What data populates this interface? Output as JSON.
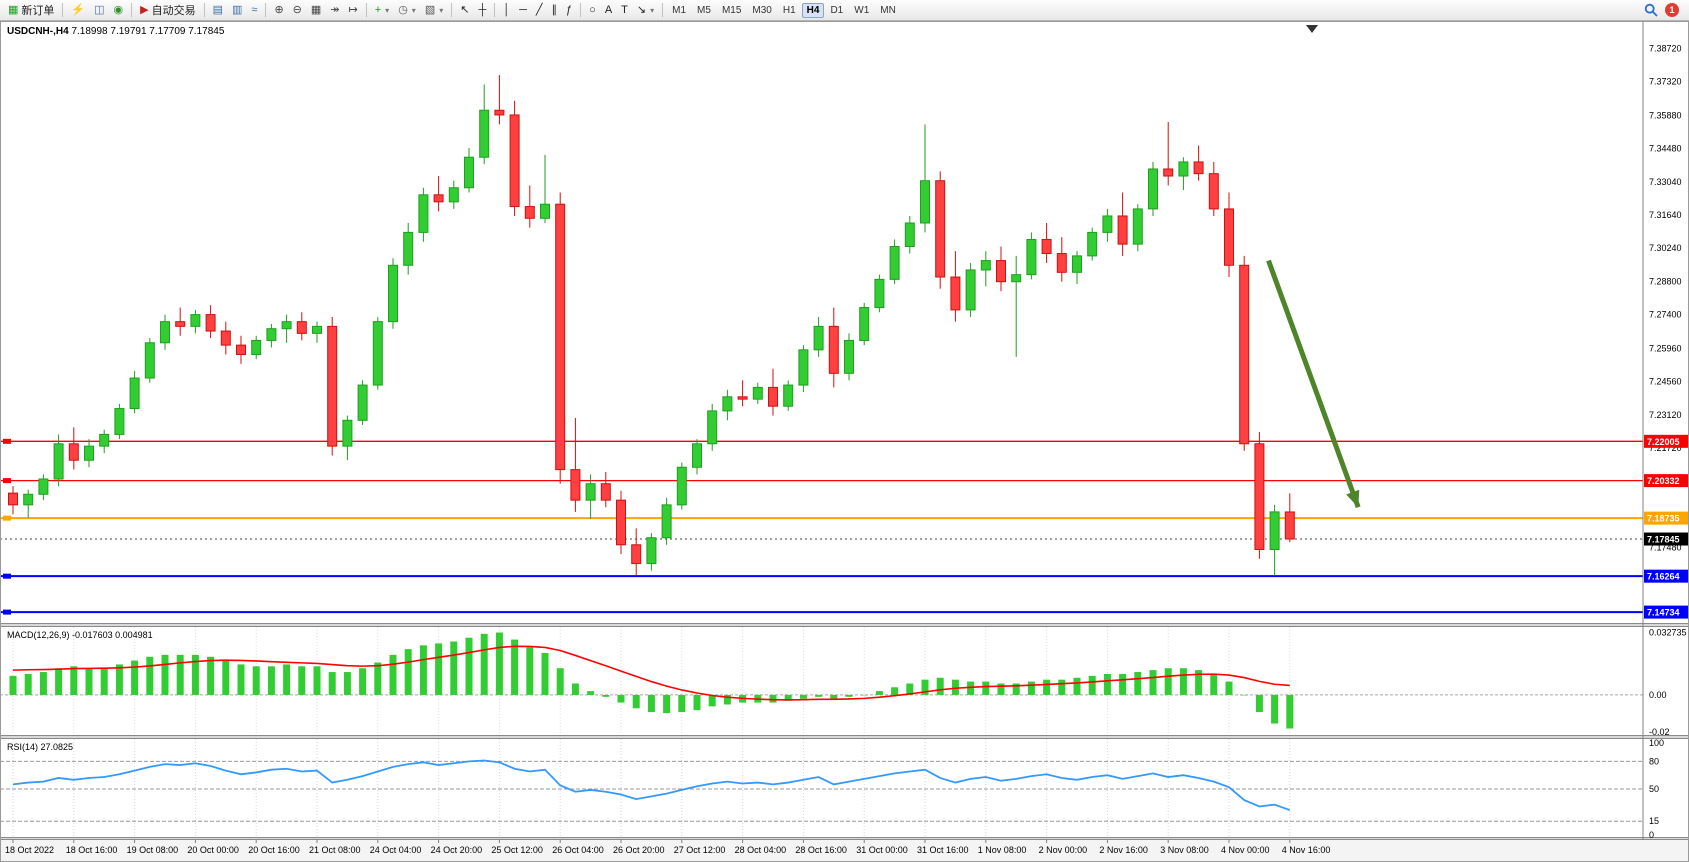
{
  "toolbar": {
    "badge_count": "1",
    "active_timeframe": "H4",
    "timeframes": [
      "M1",
      "M5",
      "M15",
      "M30",
      "H1",
      "H4",
      "D1",
      "W1",
      "MN"
    ],
    "items": [
      {
        "type": "button",
        "name": "new-order",
        "glyph": "▦",
        "color": "#1a9e1a",
        "label": "新订单"
      },
      {
        "type": "sep"
      },
      {
        "type": "button",
        "name": "market-watch",
        "glyph": "⚡",
        "color": "#d49000"
      },
      {
        "type": "button",
        "name": "data-window",
        "glyph": "◫",
        "color": "#4a6fa5"
      },
      {
        "type": "button",
        "name": "navigator",
        "glyph": "◉",
        "color": "#2f8f2f"
      },
      {
        "type": "sep"
      },
      {
        "type": "button",
        "name": "autotrading",
        "glyph": "▶",
        "color": "#c82020",
        "label": "自动交易"
      },
      {
        "type": "sep"
      },
      {
        "type": "button",
        "name": "bar-chart",
        "glyph": "▤",
        "color": "#3a6ea5"
      },
      {
        "type": "button",
        "name": "candlestick-chart",
        "glyph": "▥",
        "color": "#3a6ea5"
      },
      {
        "type": "button",
        "name": "line-chart",
        "glyph": "≈",
        "color": "#3a6ea5"
      },
      {
        "type": "sep"
      },
      {
        "type": "button",
        "name": "zoom-in",
        "glyph": "⊕",
        "color": "#444444"
      },
      {
        "type": "button",
        "name": "zoom-out",
        "glyph": "⊖",
        "color": "#444444"
      },
      {
        "type": "button",
        "name": "tile-windows",
        "glyph": "▦",
        "color": "#444444"
      },
      {
        "type": "button",
        "name": "auto-scroll",
        "glyph": "↠",
        "color": "#444444"
      },
      {
        "type": "button",
        "name": "chart-shift",
        "glyph": "↦",
        "color": "#444444"
      },
      {
        "type": "sep"
      },
      {
        "type": "button",
        "name": "new-chart",
        "glyph": "+",
        "color": "#1a9e1a",
        "dd": true
      },
      {
        "type": "button",
        "name": "period-selector",
        "glyph": "◷",
        "color": "#555555",
        "dd": true
      },
      {
        "type": "button",
        "name": "templates",
        "glyph": "▧",
        "color": "#555555",
        "dd": true
      },
      {
        "type": "sep"
      },
      {
        "type": "button",
        "name": "cursor",
        "glyph": "↖",
        "color": "#222222"
      },
      {
        "type": "button",
        "name": "crosshair",
        "glyph": "┼",
        "color": "#222222"
      },
      {
        "type": "sep"
      },
      {
        "type": "button",
        "name": "vertical-line",
        "glyph": "│",
        "color": "#222222"
      },
      {
        "type": "button",
        "name": "horizontal-line",
        "glyph": "─",
        "color": "#222222"
      },
      {
        "type": "button",
        "name": "trendline",
        "glyph": "╱",
        "color": "#222222"
      },
      {
        "type": "button",
        "name": "equidistant-channel",
        "glyph": "∥",
        "color": "#222222"
      },
      {
        "type": "button",
        "name": "fibonacci-retracement",
        "glyph": "ƒ",
        "color": "#222222"
      },
      {
        "type": "sep"
      },
      {
        "type": "button",
        "name": "shapes",
        "glyph": "○",
        "color": "#222222"
      },
      {
        "type": "button",
        "name": "text",
        "glyph": "A",
        "color": "#222222"
      },
      {
        "type": "button",
        "name": "text-label",
        "glyph": "T",
        "color": "#222222"
      },
      {
        "type": "button",
        "name": "arrows",
        "glyph": "↘",
        "color": "#222222",
        "dd": true
      },
      {
        "type": "sep"
      }
    ]
  },
  "window": {
    "symbol_period": "USDCNH-,H4",
    "ohlc": "7.18998 7.19791 7.17709 7.17845"
  },
  "indicators": {
    "macd": {
      "name": "MACD(12,26,9)",
      "values": "-0.017603 0.004981"
    },
    "rsi": {
      "name": "RSI(14)",
      "value": "27.0825"
    }
  },
  "chart_data": {
    "type": "candlestick",
    "symbol": "USDCNH-",
    "timeframe": "H4",
    "price_range": {
      "top": 7.399,
      "bottom": 7.1427
    },
    "colors": {
      "up": "#32CD32",
      "up_border": "#1F9E1F",
      "down": "#FF4040",
      "down_border": "#D01010",
      "macd_hist": "#32CD32",
      "macd_signal": "#FF0000",
      "rsi_line": "#3399FF",
      "arrow": "#4d8528"
    },
    "candles": [
      [
        7.198,
        7.201,
        7.189,
        7.193
      ],
      [
        7.193,
        7.1995,
        7.1875,
        7.1975
      ],
      [
        7.1975,
        7.206,
        7.195,
        7.204
      ],
      [
        7.204,
        7.223,
        7.201,
        7.219
      ],
      [
        7.219,
        7.226,
        7.208,
        7.212
      ],
      [
        7.212,
        7.221,
        7.209,
        7.218
      ],
      [
        7.218,
        7.225,
        7.215,
        7.223
      ],
      [
        7.223,
        7.236,
        7.221,
        7.234
      ],
      [
        7.234,
        7.25,
        7.232,
        7.247
      ],
      [
        7.247,
        7.264,
        7.245,
        7.262
      ],
      [
        7.262,
        7.274,
        7.259,
        7.271
      ],
      [
        7.271,
        7.277,
        7.265,
        7.269
      ],
      [
        7.269,
        7.276,
        7.266,
        7.274
      ],
      [
        7.274,
        7.278,
        7.264,
        7.267
      ],
      [
        7.267,
        7.271,
        7.257,
        7.261
      ],
      [
        7.261,
        7.265,
        7.253,
        7.257
      ],
      [
        7.257,
        7.265,
        7.255,
        7.263
      ],
      [
        7.263,
        7.27,
        7.26,
        7.268
      ],
      [
        7.268,
        7.274,
        7.262,
        7.271
      ],
      [
        7.271,
        7.275,
        7.263,
        7.266
      ],
      [
        7.266,
        7.271,
        7.262,
        7.269
      ],
      [
        7.269,
        7.273,
        7.214,
        7.218
      ],
      [
        7.218,
        7.231,
        7.212,
        7.229
      ],
      [
        7.229,
        7.246,
        7.227,
        7.244
      ],
      [
        7.244,
        7.273,
        7.242,
        7.271
      ],
      [
        7.271,
        7.298,
        7.268,
        7.295
      ],
      [
        7.295,
        7.313,
        7.291,
        7.309
      ],
      [
        7.309,
        7.328,
        7.305,
        7.325
      ],
      [
        7.325,
        7.333,
        7.318,
        7.322
      ],
      [
        7.322,
        7.331,
        7.319,
        7.328
      ],
      [
        7.328,
        7.345,
        7.326,
        7.341
      ],
      [
        7.341,
        7.372,
        7.338,
        7.361
      ],
      [
        7.361,
        7.376,
        7.355,
        7.359
      ],
      [
        7.359,
        7.365,
        7.316,
        7.32
      ],
      [
        7.32,
        7.329,
        7.311,
        7.315
      ],
      [
        7.315,
        7.342,
        7.313,
        7.321
      ],
      [
        7.321,
        7.326,
        7.202,
        7.208
      ],
      [
        7.208,
        7.23,
        7.19,
        7.195
      ],
      [
        7.195,
        7.206,
        7.187,
        7.202
      ],
      [
        7.202,
        7.207,
        7.192,
        7.195
      ],
      [
        7.195,
        7.199,
        7.172,
        7.176
      ],
      [
        7.176,
        7.183,
        7.163,
        7.168
      ],
      [
        7.168,
        7.181,
        7.165,
        7.179
      ],
      [
        7.179,
        7.196,
        7.176,
        7.193
      ],
      [
        7.193,
        7.211,
        7.191,
        7.209
      ],
      [
        7.209,
        7.221,
        7.206,
        7.219
      ],
      [
        7.219,
        7.236,
        7.216,
        7.233
      ],
      [
        7.233,
        7.242,
        7.229,
        7.239
      ],
      [
        7.239,
        7.246,
        7.235,
        7.238
      ],
      [
        7.238,
        7.245,
        7.236,
        7.243
      ],
      [
        7.243,
        7.251,
        7.231,
        7.235
      ],
      [
        7.235,
        7.246,
        7.233,
        7.244
      ],
      [
        7.244,
        7.261,
        7.241,
        7.259
      ],
      [
        7.259,
        7.273,
        7.256,
        7.269
      ],
      [
        7.269,
        7.277,
        7.243,
        7.249
      ],
      [
        7.249,
        7.266,
        7.246,
        7.263
      ],
      [
        7.263,
        7.279,
        7.261,
        7.277
      ],
      [
        7.277,
        7.291,
        7.275,
        7.289
      ],
      [
        7.289,
        7.306,
        7.287,
        7.303
      ],
      [
        7.303,
        7.316,
        7.3,
        7.313
      ],
      [
        7.313,
        7.355,
        7.309,
        7.331
      ],
      [
        7.331,
        7.335,
        7.285,
        7.29
      ],
      [
        7.29,
        7.301,
        7.271,
        7.276
      ],
      [
        7.276,
        7.296,
        7.273,
        7.293
      ],
      [
        7.293,
        7.301,
        7.286,
        7.297
      ],
      [
        7.297,
        7.303,
        7.284,
        7.288
      ],
      [
        7.288,
        7.299,
        7.256,
        7.291
      ],
      [
        7.291,
        7.309,
        7.289,
        7.306
      ],
      [
        7.306,
        7.313,
        7.296,
        7.3
      ],
      [
        7.3,
        7.307,
        7.288,
        7.292
      ],
      [
        7.292,
        7.301,
        7.287,
        7.299
      ],
      [
        7.299,
        7.311,
        7.297,
        7.309
      ],
      [
        7.309,
        7.319,
        7.305,
        7.316
      ],
      [
        7.316,
        7.326,
        7.299,
        7.304
      ],
      [
        7.304,
        7.321,
        7.301,
        7.319
      ],
      [
        7.319,
        7.339,
        7.316,
        7.336
      ],
      [
        7.336,
        7.356,
        7.329,
        7.333
      ],
      [
        7.333,
        7.341,
        7.327,
        7.339
      ],
      [
        7.339,
        7.346,
        7.331,
        7.334
      ],
      [
        7.334,
        7.339,
        7.316,
        7.319
      ],
      [
        7.319,
        7.326,
        7.29,
        7.295
      ],
      [
        7.295,
        7.299,
        7.216,
        7.219
      ],
      [
        7.219,
        7.224,
        7.17,
        7.174
      ],
      [
        7.174,
        7.193,
        7.1628,
        7.19
      ],
      [
        7.18998,
        7.19791,
        7.17709,
        7.17845
      ]
    ],
    "price_axis": [
      {
        "label": "7.38720",
        "value": 7.3872
      },
      {
        "label": "7.37320",
        "value": 7.3732
      },
      {
        "label": "7.35880",
        "value": 7.3588
      },
      {
        "label": "7.34480",
        "value": 7.3448
      },
      {
        "label": "7.33040",
        "value": 7.3304
      },
      {
        "label": "7.31640",
        "value": 7.3164
      },
      {
        "label": "7.30240",
        "value": 7.3024
      },
      {
        "label": "7.28800",
        "value": 7.288
      },
      {
        "label": "7.27400",
        "value": 7.274
      },
      {
        "label": "7.25960",
        "value": 7.2596
      },
      {
        "label": "7.24560",
        "value": 7.2456
      },
      {
        "label": "7.23120",
        "value": 7.2312
      },
      {
        "label": "7.21720",
        "value": 7.2172
      },
      {
        "label": "7.17480",
        "value": 7.1748
      }
    ],
    "hlines": [
      {
        "label": "7.22005",
        "value": 7.22005,
        "color": "#FF0000",
        "width": 1.3
      },
      {
        "label": "7.20332",
        "value": 7.20332,
        "color": "#FF0000",
        "width": 1.3
      },
      {
        "label": "7.18735",
        "value": 7.18735,
        "color": "#FFA500",
        "width": 2
      },
      {
        "label": "7.16264",
        "value": 7.16264,
        "color": "#0000FF",
        "width": 2
      },
      {
        "label": "7.14734",
        "value": 7.14734,
        "color": "#0000FF",
        "width": 2
      }
    ],
    "current_price": {
      "label": "7.17845",
      "value": 7.17845,
      "color": "#000000"
    },
    "trend_arrow": {
      "from": {
        "index": 82.6,
        "price": 7.297
      },
      "to": {
        "index": 88.5,
        "price": 7.192
      },
      "color": "#4d8528"
    },
    "macd": {
      "range": {
        "max": 0.0356,
        "min": -0.021
      },
      "axis": [
        {
          "label": "0.032735",
          "value": 0.032735
        },
        {
          "label": "0.00",
          "value": 0
        },
        {
          "label": "-0.02",
          "value": -0.0195
        }
      ],
      "histogram": [
        0.01,
        0.011,
        0.012,
        0.014,
        0.015,
        0.014,
        0.014,
        0.016,
        0.018,
        0.02,
        0.021,
        0.021,
        0.021,
        0.02,
        0.018,
        0.016,
        0.015,
        0.015,
        0.016,
        0.015,
        0.015,
        0.012,
        0.012,
        0.014,
        0.017,
        0.021,
        0.024,
        0.026,
        0.027,
        0.028,
        0.03,
        0.032,
        0.0327,
        0.029,
        0.025,
        0.022,
        0.014,
        0.006,
        0.002,
        -0.001,
        -0.004,
        -0.007,
        -0.009,
        -0.0095,
        -0.009,
        -0.008,
        -0.006,
        -0.005,
        -0.004,
        -0.004,
        -0.004,
        -0.003,
        -0.002,
        -0.001,
        -0.002,
        -0.001,
        0.0,
        0.002,
        0.004,
        0.006,
        0.008,
        0.009,
        0.008,
        0.007,
        0.007,
        0.006,
        0.006,
        0.007,
        0.008,
        0.008,
        0.009,
        0.01,
        0.011,
        0.011,
        0.012,
        0.013,
        0.014,
        0.014,
        0.013,
        0.011,
        0.007,
        0.0,
        -0.009,
        -0.015,
        -0.017603
      ],
      "signal": [
        0.013,
        0.0132,
        0.0133,
        0.0135,
        0.0138,
        0.0139,
        0.014,
        0.0142,
        0.0146,
        0.0152,
        0.016,
        0.0168,
        0.0175,
        0.018,
        0.0182,
        0.0181,
        0.0178,
        0.0174,
        0.0171,
        0.0168,
        0.0165,
        0.0159,
        0.0153,
        0.0151,
        0.0153,
        0.0161,
        0.0172,
        0.0185,
        0.0197,
        0.0209,
        0.0222,
        0.0236,
        0.0249,
        0.0255,
        0.0254,
        0.0249,
        0.0233,
        0.0207,
        0.018,
        0.0153,
        0.0125,
        0.0097,
        0.007,
        0.0046,
        0.0026,
        0.001,
        -0.0003,
        -0.0012,
        -0.0018,
        -0.0022,
        -0.0025,
        -0.0026,
        -0.0025,
        -0.0023,
        -0.0023,
        -0.0021,
        -0.0018,
        -0.0012,
        -0.0004,
        0.0005,
        0.0016,
        0.0027,
        0.0035,
        0.004,
        0.0044,
        0.0046,
        0.0048,
        0.0051,
        0.0055,
        0.0059,
        0.0063,
        0.0068,
        0.0074,
        0.0079,
        0.0085,
        0.0091,
        0.0098,
        0.0104,
        0.0108,
        0.0109,
        0.0104,
        0.0091,
        0.0071,
        0.0056,
        0.004981
      ]
    },
    "rsi": {
      "levels": [
        80,
        50,
        15
      ],
      "axis": [
        {
          "label": "100",
          "value": 100
        },
        {
          "label": "80",
          "value": 80
        },
        {
          "label": "50",
          "value": 50
        },
        {
          "label": "15",
          "value": 15
        },
        {
          "label": "0",
          "value": 0
        }
      ],
      "values": [
        55,
        57,
        58,
        62,
        60,
        62,
        63,
        66,
        70,
        74,
        77,
        76,
        78,
        75,
        70,
        66,
        68,
        71,
        72,
        69,
        70,
        57,
        60,
        64,
        69,
        74,
        77,
        79,
        76,
        78,
        80,
        81,
        79,
        72,
        69,
        71,
        54,
        47,
        49,
        47,
        44,
        39,
        42,
        45,
        49,
        53,
        56,
        58,
        56,
        57,
        55,
        57,
        60,
        63,
        55,
        58,
        61,
        64,
        67,
        69,
        71,
        62,
        57,
        61,
        63,
        59,
        61,
        64,
        66,
        62,
        60,
        63,
        65,
        61,
        64,
        67,
        63,
        65,
        62,
        58,
        52,
        38,
        31,
        33,
        27.08
      ]
    },
    "time_axis": [
      "18 Oct 2022",
      "18 Oct 16:00",
      "19 Oct 08:00",
      "20 Oct 00:00",
      "20 Oct 16:00",
      "21 Oct 08:00",
      "24 Oct 04:00",
      "24 Oct 20:00",
      "25 Oct 12:00",
      "26 Oct 04:00",
      "26 Oct 20:00",
      "27 Oct 12:00",
      "28 Oct 04:00",
      "28 Oct 16:00",
      "31 Oct 00:00",
      "31 Oct 16:00",
      "1 Nov 08:00",
      "2 Nov 00:00",
      "2 Nov 16:00",
      "3 Nov 08:00",
      "4 Nov 00:00",
      "4 Nov 16:00"
    ]
  }
}
